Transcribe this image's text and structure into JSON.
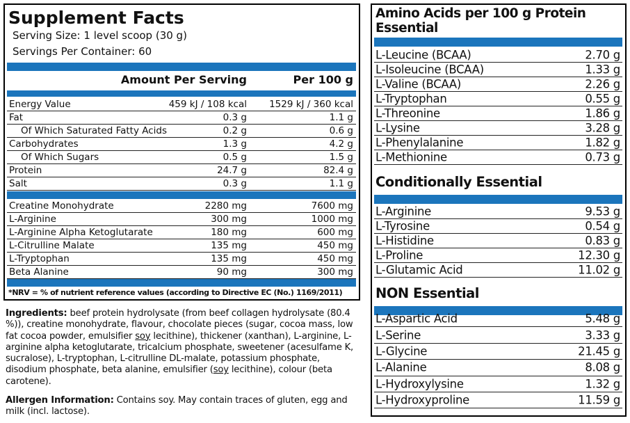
{
  "supplement_facts": {
    "title": "Supplement Facts",
    "serving_size_label": "Serving Size:",
    "serving_size": "1 level scoop (30 g)",
    "servings_label": "Servings Per Container:",
    "servings": "60",
    "columns": [
      "Amount Per Serving",
      "Per 100 g"
    ],
    "nutrients": [
      [
        "Energy Value",
        "459 kJ / 108 kcal",
        "1529 kJ / 360 kcal"
      ],
      [
        "Fat",
        "0.3 g",
        "1.1 g"
      ],
      [
        "Of Which Saturated Fatty Acids",
        "0.2 g",
        "0.6 g"
      ],
      [
        "Carbohydrates",
        "1.3 g",
        "4.2 g"
      ],
      [
        "Of Which Sugars",
        "0.5 g",
        "1.5 g"
      ],
      [
        "Protein",
        "24.7 g",
        "82.4 g"
      ],
      [
        "Salt",
        "0.3 g",
        "1.1 g"
      ]
    ],
    "actives": [
      [
        "Creatine Monohydrate",
        "2280 mg",
        "7600 mg"
      ],
      [
        "L-Arginine",
        "300 mg",
        "1000 mg"
      ],
      [
        "L-Arginine Alpha Ketoglutarate",
        "180 mg",
        "600 mg"
      ],
      [
        "L-Citrulline Malate",
        "135 mg",
        "450 mg"
      ],
      [
        "L-Tryptophan",
        "135 mg",
        "450 mg"
      ],
      [
        "Beta Alanine",
        "90 mg",
        "300 mg"
      ]
    ],
    "note": "*NRV = % of nutrient reference values (according to Directive EC (No.) 1169/2011)"
  },
  "ingredients": {
    "label": "Ingredients:",
    "parts": [
      " beef protein hydrolysate (from beef collagen hydrolysate (80.4 %)), creatine monohydrate, flavour, chocolate pieces (sugar, cocoa mass, low fat cocoa powder, emulsifier ",
      "soy",
      " lecithine), thickener (xanthan), L-arginine, L-arginine alpha ketoglutarate, tricalcium phosphate, sweetener (acesulfame K, sucralose), L-tryptophan, L-citrulline DL-malate, potassium phosphate, disodium phosphate, beta alanine, emulsifier (",
      "soy",
      " lecithine), colour (beta carotene)."
    ]
  },
  "allergen": {
    "label": "Allergen Information:",
    "text": " Contains soy. May contain traces of gluten, egg and milk (incl. lactose)."
  },
  "amino_acids": {
    "title": "Amino Acids per 100 g Protein",
    "sections": [
      {
        "heading": "Essential",
        "rows": [
          [
            "L-Leucine (BCAA)",
            "2.70 g"
          ],
          [
            "L-Isoleucine (BCAA)",
            "1.33 g"
          ],
          [
            "L-Valine (BCAA)",
            "2.26 g"
          ],
          [
            "L-Tryptophan",
            "0.55 g"
          ],
          [
            "L-Threonine",
            "1.86 g"
          ],
          [
            "L-Lysine",
            "3.28 g"
          ],
          [
            "L-Phenylalanine",
            "1.82 g"
          ],
          [
            "L-Methionine",
            "0.73 g"
          ]
        ]
      },
      {
        "heading": "Conditionally Essential",
        "rows": [
          [
            "L-Arginine",
            "9.53 g"
          ],
          [
            "L-Tyrosine",
            "0.54 g"
          ],
          [
            "L-Histidine",
            "0.83 g"
          ],
          [
            "L-Proline",
            "12.30 g"
          ],
          [
            "L-Glutamic Acid",
            "11.02 g"
          ]
        ]
      },
      {
        "heading": "NON Essential",
        "rows": [
          [
            "L-Aspartic Acid",
            "5.48 g"
          ],
          [
            "L-Serine",
            "3.33 g"
          ],
          [
            "L-Glycine",
            "21.45 g"
          ],
          [
            "L-Alanine",
            "8.08 g"
          ],
          [
            "L-Hydroxylysine",
            "1.32 g"
          ],
          [
            "L-Hydroxyproline",
            "11.59 g"
          ]
        ]
      }
    ]
  }
}
